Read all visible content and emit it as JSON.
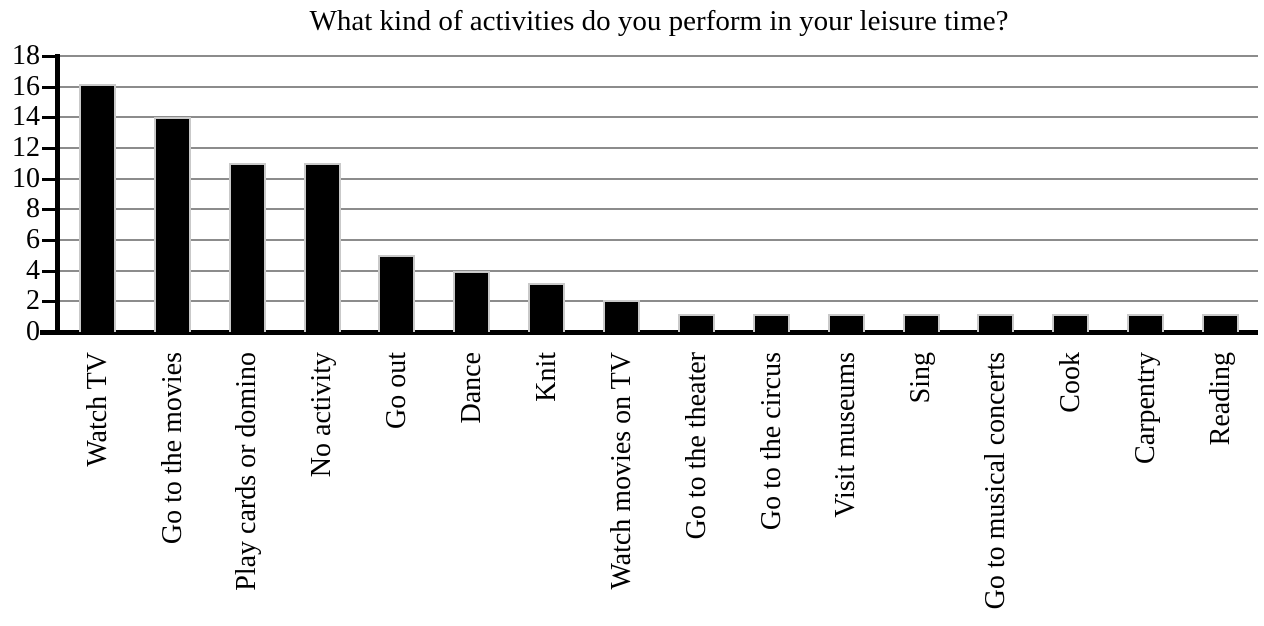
{
  "chart_data": {
    "type": "bar",
    "title": "What kind of activities do you perform in your leisure time?",
    "categories": [
      "Watch TV",
      "Go to the movies",
      "Play cards or domino",
      "No activity",
      "Go out",
      "Dance",
      "Knit",
      "Watch movies on TV",
      "Go to the theater",
      "Go to the circus",
      "Visit museums",
      "Sing",
      "Go to musical concerts",
      "Cook",
      "Carpentry",
      "Reading"
    ],
    "values": [
      16.2,
      14,
      11,
      11,
      5,
      4,
      3.2,
      2.1,
      1.2,
      1.2,
      1.2,
      1.2,
      1.2,
      1.2,
      1.2,
      1.2
    ],
    "xlabel": "",
    "ylabel": "",
    "ylim": [
      0,
      18
    ],
    "yticks": [
      0,
      2,
      4,
      6,
      8,
      10,
      12,
      14,
      16,
      18
    ],
    "grid": true,
    "legend": false,
    "bar_color": "#000000",
    "bar_outline_color": "#c9c9c9",
    "gridline_color": "#8c8c8c",
    "axis_color": "#000000"
  }
}
